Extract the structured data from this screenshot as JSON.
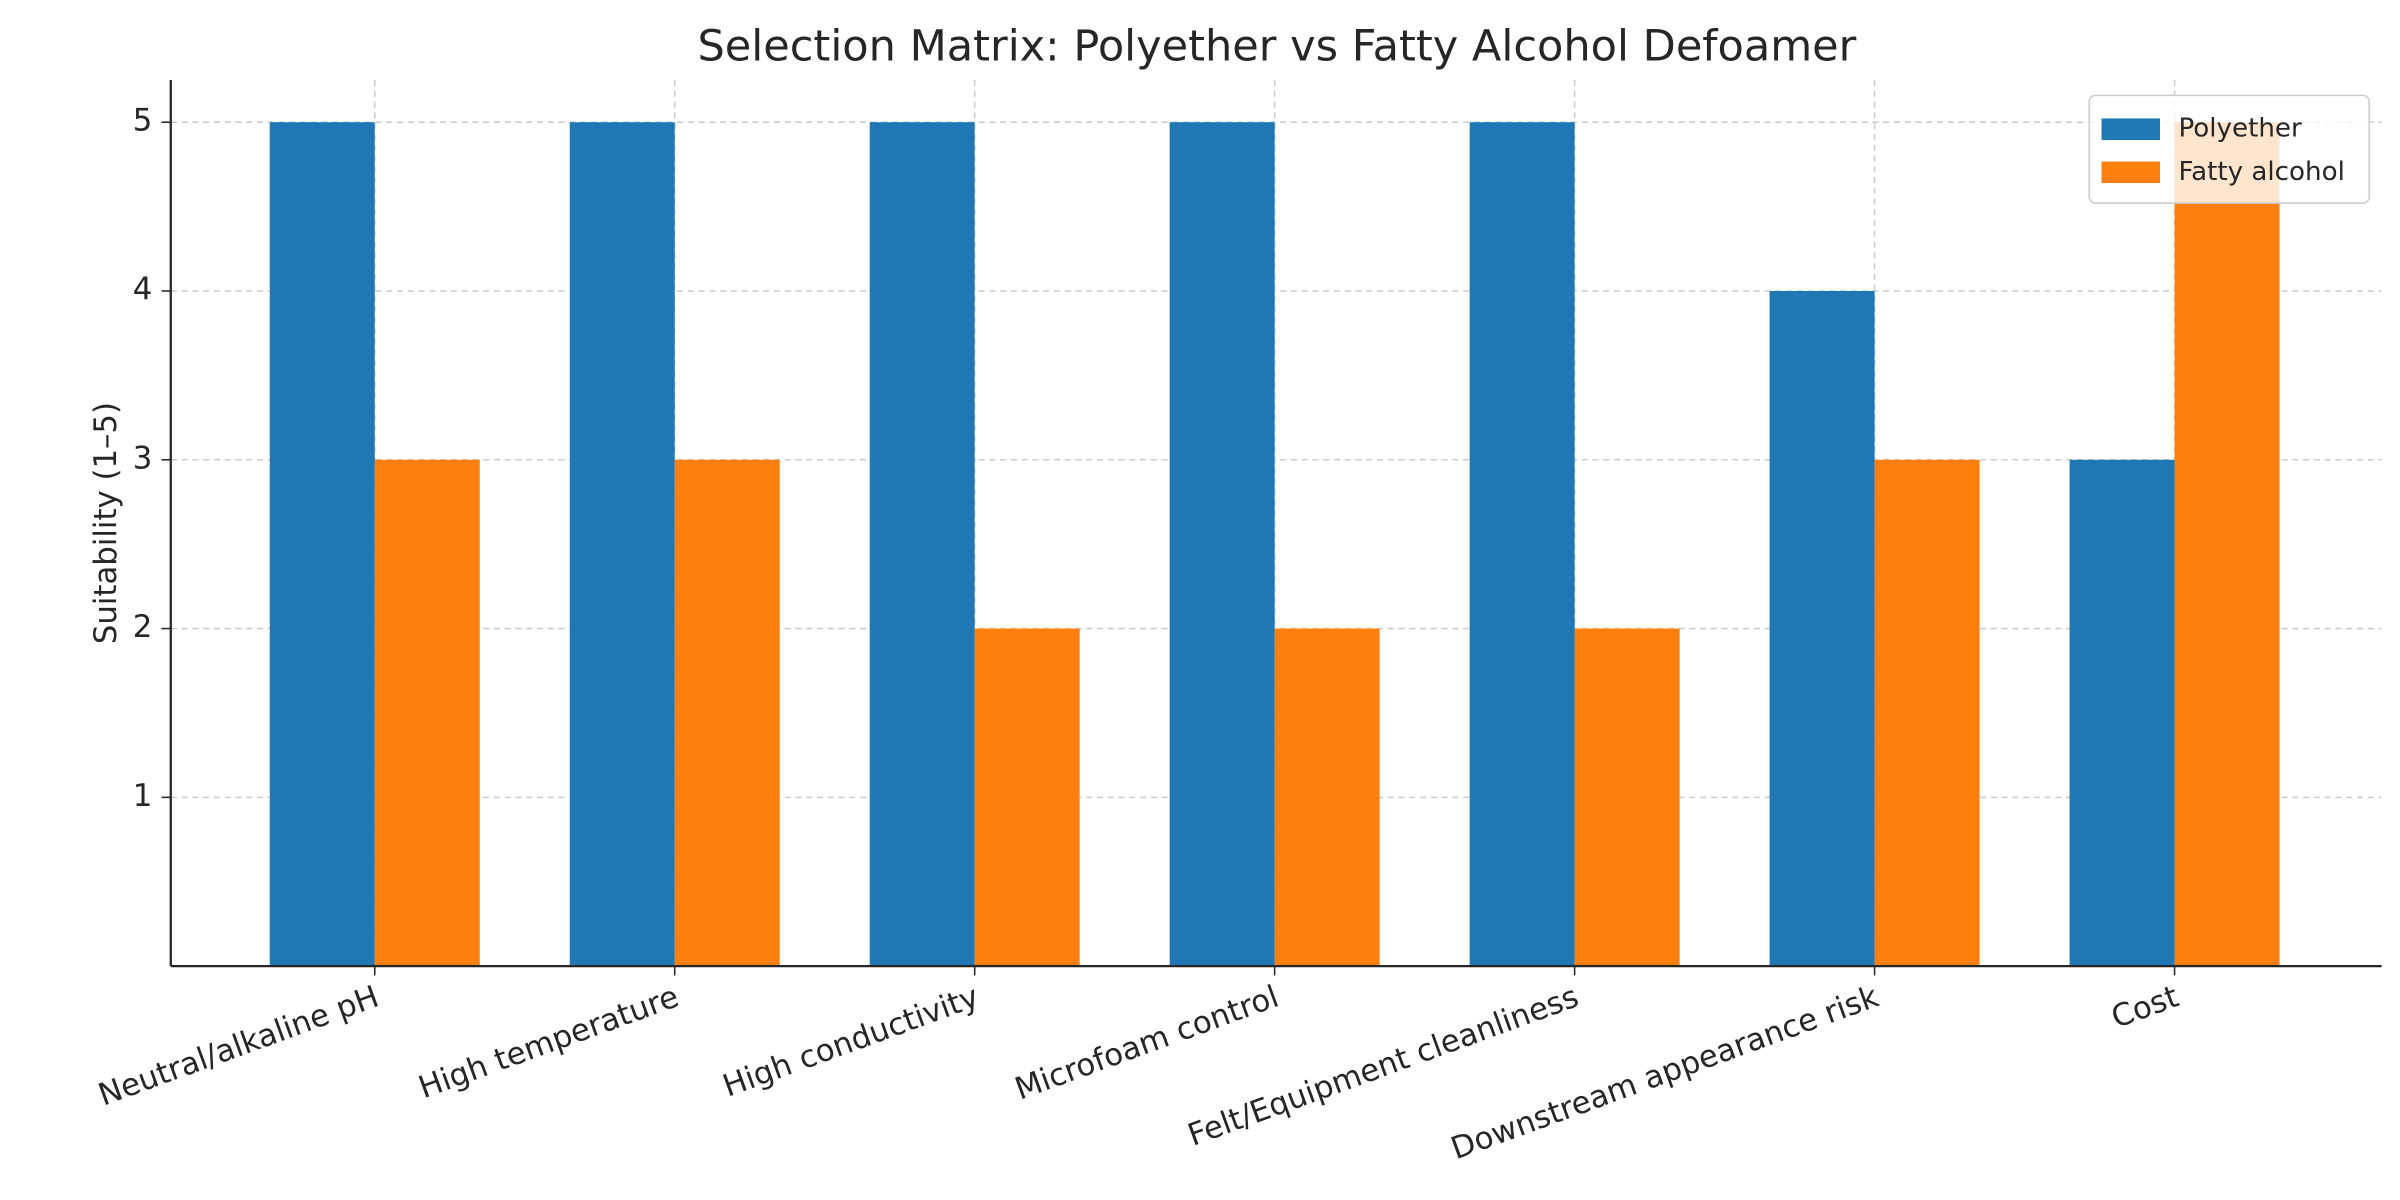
{
  "chart_data": {
    "type": "bar",
    "title": "Selection Matrix: Polyether vs Fatty Alcohol Defoamer",
    "y_label": "Suitability (1–5)",
    "categories": [
      "Neutral/alkaline pH",
      "High temperature",
      "High conductivity",
      "Microfoam control",
      "Felt/Equipment cleanliness",
      "Downstream appearance risk",
      "Cost"
    ],
    "series": [
      {
        "name": "Polyether",
        "color": "#1f77b4",
        "values": [
          5,
          5,
          5,
          5,
          5,
          4,
          3
        ]
      },
      {
        "name": "Fatty alcohol",
        "color": "#ff7f0e",
        "values": [
          3,
          3,
          2,
          2,
          2,
          3,
          5
        ]
      }
    ],
    "ylim": [
      0,
      5.25
    ],
    "yticks": [
      1,
      2,
      3,
      4,
      5
    ],
    "grid": true,
    "legend": "upper right"
  }
}
